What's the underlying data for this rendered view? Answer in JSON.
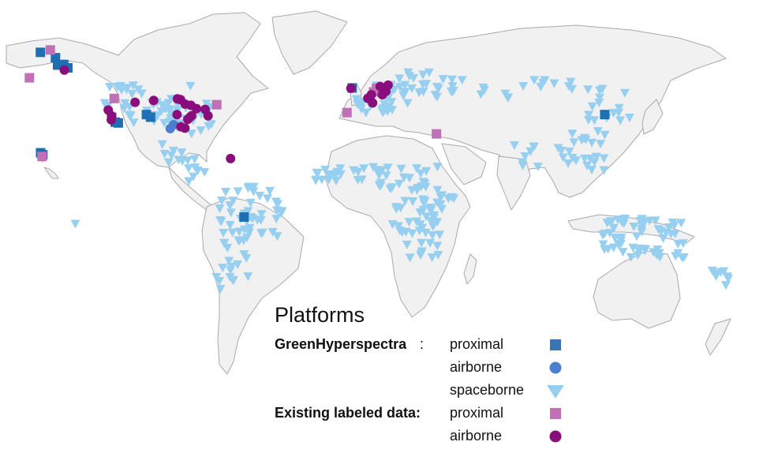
{
  "legend": {
    "title": "Platforms",
    "groups": [
      {
        "name": "GreenHyperspectra",
        "separator": ":",
        "platforms": [
          {
            "label": "proximal",
            "symbol": "square",
            "color": "#3a74b5"
          },
          {
            "label": "airborne",
            "symbol": "circle",
            "color": "#4a7ed0"
          },
          {
            "label": "spaceborne",
            "symbol": "triangle-down",
            "color": "#96cff0"
          }
        ]
      },
      {
        "name": "Existing labeled data:",
        "separator": "",
        "platforms": [
          {
            "label": "proximal",
            "symbol": "square",
            "color": "#c270b6"
          },
          {
            "label": "airborne",
            "symbol": "circle",
            "color": "#8a0d7c"
          }
        ]
      }
    ]
  },
  "map_data": {
    "projection": "equirectangular (approx.)",
    "basemap": "world countries, light grey fill",
    "site_layers": [
      {
        "layer": "GreenHyperspectra proximal",
        "symbol": "square",
        "color": "#1f6fb3",
        "sites_lonlat": [
          [
            -156.8,
            71.3
          ],
          [
            -149.5,
            68.6
          ],
          [
            -148.5,
            64.9
          ],
          [
            -145.5,
            65.2
          ],
          [
            -143.5,
            63.5
          ],
          [
            -122.3,
            38.6
          ],
          [
            -120.6,
            36.2
          ],
          [
            -119.1,
            35.8
          ],
          [
            -105.5,
            40.0
          ],
          [
            -103.5,
            38.7
          ],
          [
            -156.7,
            20.8
          ],
          [
            -155.6,
            19.8
          ],
          [
            -6.0,
            53.4
          ],
          [
            116.2,
            40.0
          ],
          [
            -58.3,
            -11.5
          ]
        ]
      },
      {
        "layer": "GreenHyperspectra airborne",
        "symbol": "circle",
        "color": "#4a7ed0",
        "sites_lonlat": [
          [
            -94.0,
            33.0
          ],
          [
            -92.3,
            34.9
          ]
        ]
      },
      {
        "layer": "GreenHyperspectra spaceborne",
        "symbol": "triangle-down",
        "color": "#96cff0",
        "regions": [
          "North America",
          "Central America",
          "South America",
          "Europe",
          "Africa",
          "Middle East",
          "Asia",
          "Australia",
          "New Zealand",
          "Hawaii"
        ]
      },
      {
        "layer": "Existing labeled data proximal",
        "symbol": "square",
        "color": "#c270b6",
        "sites_lonlat": [
          [
            -162.1,
            58.5
          ],
          [
            -152.0,
            72.5
          ],
          [
            -121.1,
            48.1
          ],
          [
            -71.5,
            45.0
          ],
          [
            -8.5,
            41.0
          ],
          [
            4.4,
            51.4
          ],
          [
            5.8,
            53.2
          ],
          [
            34.8,
            30.3
          ],
          [
            -156.0,
            18.9
          ]
        ]
      },
      {
        "layer": "Existing labeled data airborne",
        "symbol": "circle",
        "color": "#8a0d7c",
        "sites_lonlat": [
          [
            -145.2,
            62.4
          ],
          [
            -124.0,
            42.3
          ],
          [
            -122.5,
            37.4
          ],
          [
            -122.4,
            39.4
          ],
          [
            -111.0,
            46.2
          ],
          [
            -102.0,
            47.1
          ],
          [
            -90.5,
            47.9
          ],
          [
            -89.0,
            47.5
          ],
          [
            -86.8,
            45.3
          ],
          [
            -84.0,
            44.7
          ],
          [
            -81.3,
            43.0
          ],
          [
            -77.1,
            42.6
          ],
          [
            -90.7,
            40.0
          ],
          [
            -84.3,
            38.8
          ],
          [
            -83.6,
            39.5
          ],
          [
            -85.5,
            37.6
          ],
          [
            -88.8,
            33.9
          ],
          [
            -86.9,
            33.2
          ],
          [
            -75.7,
            39.4
          ],
          [
            -64.8,
            17.9
          ],
          [
            3.3,
            50.0
          ],
          [
            8.6,
            50.0
          ],
          [
            10.3,
            51.7
          ],
          [
            7.6,
            54.1
          ],
          [
            11.4,
            54.8
          ],
          [
            3.9,
            45.9
          ],
          [
            1.6,
            48.2
          ],
          [
            -6.6,
            53.2
          ]
        ]
      }
    ]
  }
}
